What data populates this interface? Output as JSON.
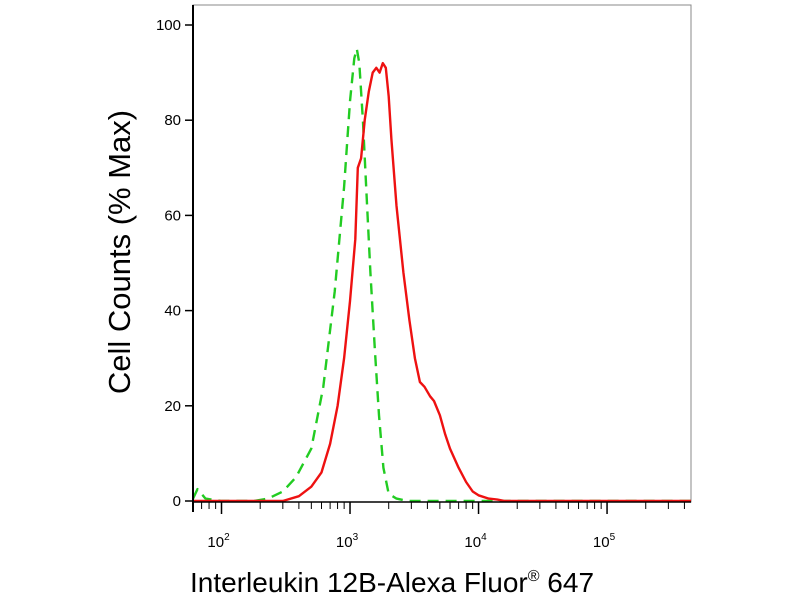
{
  "chart_data": {
    "type": "line",
    "title": "",
    "xlabel_main": "Interleukin 12B-Alexa Fluor",
    "xlabel_sup": "®",
    "xlabel_tail": " 647",
    "ylabel": "Cell Counts (% Max)",
    "x_scale": "log",
    "xlim": [
      60,
      450000
    ],
    "ylim": [
      0,
      100
    ],
    "grid": false,
    "legend": "none",
    "y_ticks": [
      {
        "value": 0,
        "label": "0"
      },
      {
        "value": 20,
        "label": "20"
      },
      {
        "value": 40,
        "label": "40"
      },
      {
        "value": 60,
        "label": "60"
      },
      {
        "value": 80,
        "label": "80"
      },
      {
        "value": 100,
        "label": "100"
      }
    ],
    "x_ticks": [
      {
        "value": 100,
        "base": "10",
        "exp": "2"
      },
      {
        "value": 1000,
        "base": "10",
        "exp": "3"
      },
      {
        "value": 10000,
        "base": "10",
        "exp": "4"
      },
      {
        "value": 100000,
        "base": "10",
        "exp": "5"
      }
    ],
    "series": [
      {
        "style": "dashed",
        "color": "#22cc22",
        "x": [
          60,
          65,
          75,
          100,
          150,
          180,
          230,
          300,
          380,
          500,
          620,
          760,
          900,
          1000,
          1080,
          1130,
          1180,
          1260,
          1340,
          1440,
          1560,
          1680,
          1820,
          2000,
          2300,
          2800,
          3500,
          4500,
          450000
        ],
        "y": [
          0.5,
          2.5,
          0.5,
          0,
          0,
          0,
          0.5,
          2,
          5,
          11,
          24,
          44,
          66,
          84,
          93,
          95,
          92,
          80,
          65,
          48,
          32,
          18,
          7,
          1.5,
          0.5,
          0,
          0,
          0,
          0
        ]
      },
      {
        "style": "solid",
        "color": "#ee1111",
        "x": [
          60,
          300,
          400,
          500,
          600,
          700,
          800,
          900,
          1000,
          1100,
          1150,
          1220,
          1300,
          1400,
          1500,
          1600,
          1700,
          1800,
          1900,
          2000,
          2100,
          2300,
          2600,
          2900,
          3200,
          3500,
          3800,
          4200,
          4500,
          5000,
          5500,
          6000,
          7000,
          8000,
          9000,
          10000,
          12000,
          14000,
          16000,
          20000,
          450000
        ],
        "y": [
          0,
          0,
          1,
          3,
          6,
          12,
          20,
          30,
          42,
          55,
          70,
          72,
          80,
          86,
          90,
          91,
          90,
          92,
          91,
          85,
          76,
          62,
          48,
          38,
          30,
          25,
          24,
          22,
          21,
          18,
          14,
          11,
          7,
          4,
          2,
          1.2,
          0.5,
          0.3,
          0,
          0,
          0
        ]
      }
    ]
  }
}
